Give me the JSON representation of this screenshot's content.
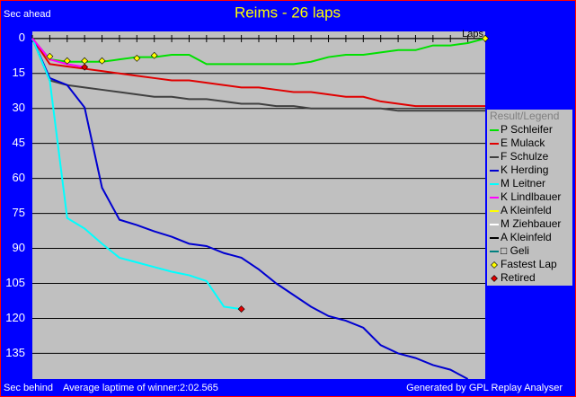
{
  "chart_data": {
    "type": "line",
    "title": "Reims - 26 laps",
    "y_label_top": "Sec ahead",
    "y_label_bottom": "Sec behind",
    "x_label": "Laps",
    "footer_left": "Average laptime of winner:2:02.565",
    "footer_right": "Generated by GPL Replay Analyser",
    "legend_title": "Result/Legend",
    "x": [
      0,
      1,
      2,
      3,
      4,
      5,
      6,
      7,
      8,
      9,
      10,
      11,
      12,
      13,
      14,
      15,
      16,
      17,
      18,
      19,
      20,
      21,
      22,
      23,
      24,
      25,
      26
    ],
    "xlim": [
      0,
      26
    ],
    "xticks": [
      0,
      1,
      2,
      3,
      4,
      5,
      6,
      7,
      8,
      9,
      10,
      11,
      12,
      13,
      14,
      15,
      16,
      17,
      18,
      19,
      20,
      21,
      22,
      23,
      24,
      25,
      26
    ],
    "ylim": [
      -3,
      146
    ],
    "yticks": [
      0,
      15,
      30,
      45,
      60,
      75,
      90,
      105,
      120,
      135
    ],
    "y_inverted": true,
    "grid": true,
    "series": [
      {
        "name": "P Schleifer",
        "color": "#00e000",
        "values": [
          0,
          9,
          10,
          10,
          10,
          9,
          8,
          8,
          7,
          7,
          11,
          11,
          11,
          11,
          11,
          11,
          10,
          8,
          7,
          7,
          6,
          5,
          5,
          3,
          3,
          2,
          0
        ]
      },
      {
        "name": "E Mulack",
        "color": "#e00000",
        "values": [
          0,
          11,
          12,
          13,
          14,
          15,
          16,
          17,
          18,
          18,
          19,
          20,
          21,
          21,
          22,
          23,
          23,
          24,
          25,
          25,
          27,
          28,
          29,
          29,
          29,
          29,
          29
        ]
      },
      {
        "name": "F Schulze",
        "color": "#404040",
        "values": [
          0,
          18,
          20,
          21,
          22,
          23,
          24,
          25,
          25,
          26,
          26,
          27,
          28,
          28,
          29,
          29,
          30,
          30,
          30,
          30,
          30,
          31,
          31,
          31,
          31,
          31,
          31
        ]
      },
      {
        "name": "K Herding",
        "color": "#0000d0",
        "values": [
          0,
          17,
          20,
          29.6,
          64,
          77.7,
          80,
          82.7,
          85,
          88,
          89,
          92,
          94,
          99,
          105,
          110,
          115,
          119,
          121,
          124,
          131.5,
          135,
          137,
          140,
          142,
          146,
          null
        ]
      },
      {
        "name": "M Leitner",
        "color": "#00ffff",
        "values": [
          0,
          18,
          77,
          81.5,
          88,
          94,
          96,
          98,
          100,
          101.5,
          104,
          115,
          116,
          null,
          null,
          null,
          null,
          null,
          null,
          null,
          null,
          null,
          null,
          null,
          null,
          null,
          null
        ]
      },
      {
        "name": "K Lindlbauer",
        "color": "#ff00ff",
        "values": [
          0,
          9,
          11,
          12.3,
          null,
          null,
          null,
          null,
          null,
          null,
          null,
          null,
          null,
          null,
          null,
          null,
          null,
          null,
          null,
          null,
          null,
          null,
          null,
          null,
          null,
          null,
          null
        ]
      },
      {
        "name": "A Kleinfeld",
        "color": "#ffff00",
        "values": [
          null,
          null,
          null,
          null,
          null,
          null,
          null,
          null,
          null,
          null,
          null,
          null,
          null,
          null,
          null,
          null,
          null,
          null,
          null,
          null,
          null,
          null,
          null,
          null,
          null,
          null,
          null
        ]
      },
      {
        "name": "M Ziehbauer",
        "color": "#ffffff",
        "values": [
          null,
          null,
          null,
          null,
          null,
          null,
          null,
          null,
          null,
          null,
          null,
          null,
          null,
          null,
          null,
          null,
          null,
          null,
          null,
          null,
          null,
          null,
          null,
          null,
          null,
          null,
          null
        ]
      },
      {
        "name": "A Kleinfeld",
        "color": "#000000",
        "values": [
          null,
          null,
          null,
          null,
          null,
          null,
          null,
          null,
          null,
          null,
          null,
          null,
          null,
          null,
          null,
          null,
          null,
          null,
          null,
          null,
          null,
          null,
          null,
          null,
          null,
          null,
          null
        ]
      },
      {
        "name": "□ Geli",
        "color": "#008080",
        "values": [
          null,
          null,
          null,
          null,
          null,
          null,
          null,
          null,
          null,
          null,
          null,
          null,
          null,
          null,
          null,
          null,
          null,
          null,
          null,
          null,
          null,
          null,
          null,
          null,
          null,
          null,
          null
        ]
      }
    ],
    "fastest_lap": {
      "name": "Fastest Lap",
      "color": "#ffff00",
      "x": [
        1,
        2,
        3,
        4,
        6,
        7,
        26
      ],
      "values": [
        7.7,
        9.6,
        9.6,
        9.6,
        8.5,
        7.3,
        0
      ]
    },
    "retired": {
      "name": "Retired",
      "color": "#e00000",
      "x": [
        3,
        12
      ],
      "values": [
        12.3,
        116
      ]
    }
  }
}
